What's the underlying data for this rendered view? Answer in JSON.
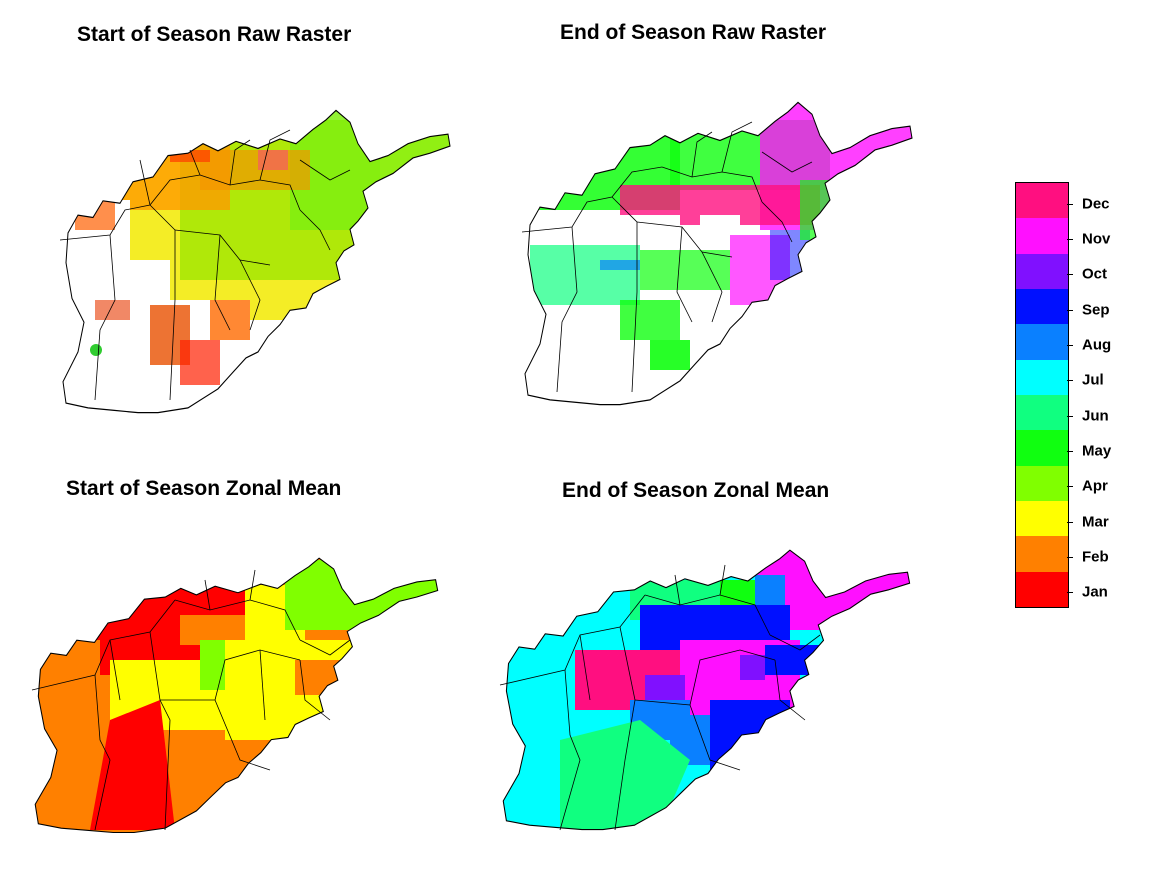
{
  "titles": {
    "sos_raw": "Start of Season Raw Raster",
    "eos_raw": "End of Season Raw Raster",
    "sos_zonal": "Start of Season Zonal Mean",
    "eos_zonal": "End of Season Zonal Mean"
  },
  "legend": {
    "months": [
      {
        "label": "Dec",
        "color": "#ff0f80"
      },
      {
        "label": "Nov",
        "color": "#ff10ff"
      },
      {
        "label": "Oct",
        "color": "#8010ff"
      },
      {
        "label": "Sep",
        "color": "#0010ff"
      },
      {
        "label": "Aug",
        "color": "#0a80ff"
      },
      {
        "label": "Jul",
        "color": "#00ffff"
      },
      {
        "label": "Jun",
        "color": "#10ff80"
      },
      {
        "label": "May",
        "color": "#10ff10"
      },
      {
        "label": "Apr",
        "color": "#80ff00"
      },
      {
        "label": "Mar",
        "color": "#ffff00"
      },
      {
        "label": "Feb",
        "color": "#ff8000"
      },
      {
        "label": "Jan",
        "color": "#ff0000"
      }
    ]
  }
}
